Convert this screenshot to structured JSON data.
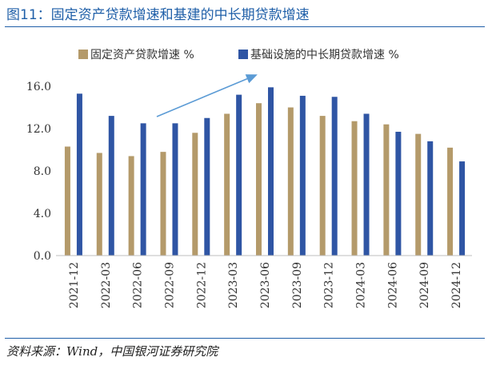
{
  "figure": {
    "title": "图11：固定资产贷款增速和基建的中长期贷款增速",
    "source": "资料来源：Wind，中国银河证券研究院"
  },
  "colors": {
    "series_a": "#b49a6a",
    "series_b": "#2f55a4",
    "arrow": "#5b9bd5",
    "rule": "#1f5fa8"
  },
  "chart_data": {
    "type": "bar",
    "categories": [
      "2021-12",
      "2022-03",
      "2022-06",
      "2022-09",
      "2022-12",
      "2023-03",
      "2023-06",
      "2023-09",
      "2023-12",
      "2024-03",
      "2024-06",
      "2024-09",
      "2024-12"
    ],
    "series": [
      {
        "name": "固定资产贷款增速 %",
        "values": [
          10.3,
          9.7,
          9.4,
          9.8,
          11.6,
          13.4,
          14.4,
          14.0,
          13.2,
          12.7,
          12.4,
          11.5,
          10.2
        ]
      },
      {
        "name": "基础设施的中长期贷款增速 %",
        "values": [
          15.3,
          13.2,
          12.5,
          12.5,
          13.0,
          15.2,
          15.9,
          15.1,
          15.0,
          13.4,
          11.7,
          10.8,
          8.9
        ]
      }
    ],
    "ylim": [
      0,
      16
    ],
    "yticks": [
      "0.0",
      "4.0",
      "8.0",
      "12.0",
      "16.0"
    ],
    "ytick_values": [
      0,
      4,
      8,
      12,
      16
    ],
    "legend_position": "top",
    "grid": false,
    "annotation": "upward trend arrow"
  }
}
